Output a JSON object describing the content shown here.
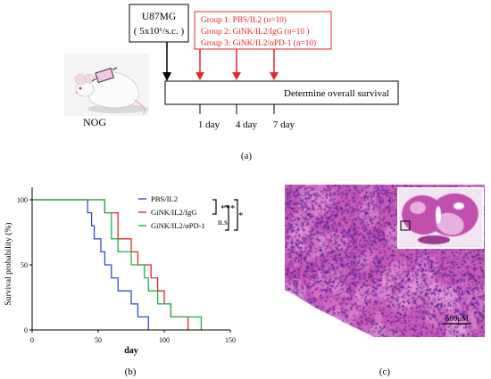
{
  "panel_a": {
    "cell_line": "U87MG",
    "dose": "( 5x10⁶/s.c. )",
    "mouse_label": "NOG",
    "groups": [
      "Group 1: PBS/IL2  (n=10)",
      "Group 2: GiNK/IL2/IgG (n=10 )",
      "Group 3: GiNK/IL2/αPD-1 (n=10)"
    ],
    "timeline_label": "Determine overall survival",
    "timepoints": [
      "1 day",
      "4 day",
      "7 day"
    ],
    "caption": "(a)",
    "colors": {
      "groups": "#e8262a",
      "timeline": "#000000"
    }
  },
  "panel_b": {
    "caption": "(b)",
    "significance": {
      "top": "***",
      "bottom": "n.s.",
      "outer": "*"
    }
  },
  "panel_c": {
    "caption": "(c)",
    "scale_bar": "500μM",
    "colors": {
      "tissue": "#c65ab7",
      "background": "#f3e4f2"
    }
  },
  "chart_data": {
    "type": "line",
    "step": true,
    "xlabel": "day",
    "ylabel": "Survival probability (%)",
    "xlim": [
      0,
      150
    ],
    "ylim": [
      0,
      100
    ],
    "x_ticks": [
      0,
      50,
      100,
      150
    ],
    "y_ticks": [
      0,
      50,
      100
    ],
    "legend_position": "top-right",
    "grid": false,
    "series": [
      {
        "name": "PBS/IL2",
        "color": "#2b4fe0",
        "x": [
          0,
          42,
          45,
          47,
          52,
          55,
          60,
          65,
          75,
          80,
          88
        ],
        "y": [
          100,
          90,
          80,
          70,
          60,
          50,
          40,
          30,
          20,
          10,
          0
        ]
      },
      {
        "name": "GiNK/IL2/IgG",
        "color": "#e8262a",
        "x": [
          0,
          55,
          65,
          75,
          80,
          90,
          95,
          100,
          105,
          110,
          118
        ],
        "y": [
          100,
          90,
          70,
          60,
          50,
          40,
          30,
          20,
          10,
          10,
          0
        ]
      },
      {
        "name": "GiNK/IL2/αPD-1",
        "color": "#22b14c",
        "x": [
          0,
          55,
          60,
          65,
          75,
          85,
          88,
          95,
          105,
          110,
          128
        ],
        "y": [
          100,
          90,
          70,
          60,
          50,
          40,
          30,
          20,
          10,
          10,
          0
        ]
      }
    ]
  }
}
